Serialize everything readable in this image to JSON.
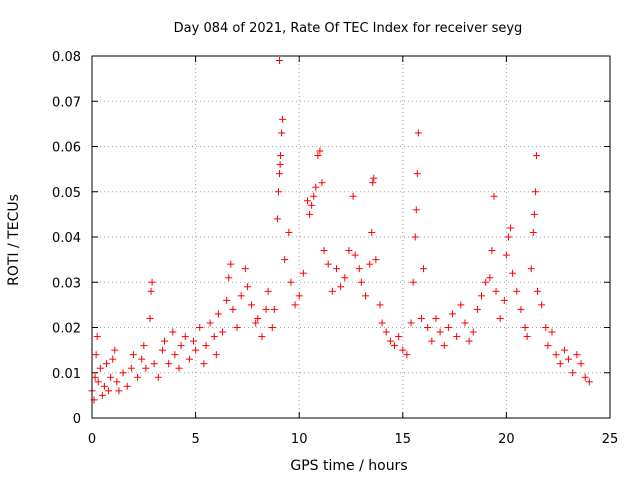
{
  "chart_data": {
    "type": "scatter",
    "title": "Day 084 of 2021, Rate Of TEC Index for receiver seyg",
    "xlabel": "GPS time / hours",
    "ylabel": "ROTI / TECUs",
    "xlim": [
      0,
      25
    ],
    "ylim": [
      0,
      0.08
    ],
    "x_ticks": [
      "0",
      "5",
      "10",
      "15",
      "20",
      "25"
    ],
    "y_ticks": [
      "0",
      "0.01",
      "0.02",
      "0.03",
      "0.04",
      "0.05",
      "0.06",
      "0.07",
      "0.08"
    ],
    "grid": true,
    "marker": "+",
    "color": "#ff0000",
    "series": [
      {
        "points": [
          [
            0.0,
            0.006
          ],
          [
            0.1,
            0.004
          ],
          [
            0.15,
            0.009
          ],
          [
            0.2,
            0.014
          ],
          [
            0.25,
            0.018
          ],
          [
            0.3,
            0.008
          ],
          [
            0.4,
            0.011
          ],
          [
            0.5,
            0.005
          ],
          [
            0.6,
            0.007
          ],
          [
            0.7,
            0.012
          ],
          [
            0.8,
            0.006
          ],
          [
            0.9,
            0.009
          ],
          [
            1.0,
            0.013
          ],
          [
            1.1,
            0.015
          ],
          [
            1.2,
            0.008
          ],
          [
            1.3,
            0.006
          ],
          [
            1.5,
            0.01
          ],
          [
            1.7,
            0.007
          ],
          [
            1.9,
            0.011
          ],
          [
            2.0,
            0.014
          ],
          [
            2.2,
            0.009
          ],
          [
            2.4,
            0.013
          ],
          [
            2.5,
            0.016
          ],
          [
            2.6,
            0.011
          ],
          [
            2.8,
            0.022
          ],
          [
            2.85,
            0.028
          ],
          [
            2.9,
            0.03
          ],
          [
            3.0,
            0.012
          ],
          [
            3.2,
            0.009
          ],
          [
            3.4,
            0.015
          ],
          [
            3.5,
            0.017
          ],
          [
            3.7,
            0.012
          ],
          [
            3.9,
            0.019
          ],
          [
            4.0,
            0.014
          ],
          [
            4.2,
            0.011
          ],
          [
            4.3,
            0.016
          ],
          [
            4.5,
            0.018
          ],
          [
            4.7,
            0.013
          ],
          [
            4.9,
            0.017
          ],
          [
            5.0,
            0.015
          ],
          [
            5.2,
            0.02
          ],
          [
            5.4,
            0.012
          ],
          [
            5.5,
            0.016
          ],
          [
            5.7,
            0.021
          ],
          [
            5.9,
            0.018
          ],
          [
            6.0,
            0.014
          ],
          [
            6.1,
            0.023
          ],
          [
            6.3,
            0.019
          ],
          [
            6.5,
            0.026
          ],
          [
            6.6,
            0.031
          ],
          [
            6.7,
            0.034
          ],
          [
            6.8,
            0.024
          ],
          [
            7.0,
            0.02
          ],
          [
            7.2,
            0.027
          ],
          [
            7.4,
            0.033
          ],
          [
            7.5,
            0.029
          ],
          [
            7.7,
            0.025
          ],
          [
            7.9,
            0.021
          ],
          [
            8.0,
            0.022
          ],
          [
            8.2,
            0.018
          ],
          [
            8.4,
            0.024
          ],
          [
            8.5,
            0.028
          ],
          [
            8.7,
            0.02
          ],
          [
            8.8,
            0.024
          ],
          [
            8.95,
            0.044
          ],
          [
            9.0,
            0.05
          ],
          [
            9.05,
            0.054
          ],
          [
            9.08,
            0.056
          ],
          [
            9.1,
            0.058
          ],
          [
            9.15,
            0.063
          ],
          [
            9.2,
            0.066
          ],
          [
            9.05,
            0.079
          ],
          [
            9.3,
            0.035
          ],
          [
            9.5,
            0.041
          ],
          [
            9.6,
            0.03
          ],
          [
            9.8,
            0.025
          ],
          [
            10.0,
            0.027
          ],
          [
            10.2,
            0.032
          ],
          [
            10.4,
            0.048
          ],
          [
            10.5,
            0.045
          ],
          [
            10.6,
            0.047
          ],
          [
            10.7,
            0.049
          ],
          [
            10.8,
            0.051
          ],
          [
            10.9,
            0.058
          ],
          [
            11.0,
            0.059
          ],
          [
            11.1,
            0.052
          ],
          [
            11.2,
            0.037
          ],
          [
            11.4,
            0.034
          ],
          [
            11.6,
            0.028
          ],
          [
            11.8,
            0.033
          ],
          [
            12.0,
            0.029
          ],
          [
            12.2,
            0.031
          ],
          [
            12.4,
            0.037
          ],
          [
            12.6,
            0.049
          ],
          [
            12.7,
            0.036
          ],
          [
            12.9,
            0.033
          ],
          [
            13.0,
            0.03
          ],
          [
            13.2,
            0.027
          ],
          [
            13.4,
            0.034
          ],
          [
            13.5,
            0.041
          ],
          [
            13.55,
            0.052
          ],
          [
            13.6,
            0.053
          ],
          [
            13.7,
            0.035
          ],
          [
            13.9,
            0.025
          ],
          [
            14.0,
            0.021
          ],
          [
            14.2,
            0.019
          ],
          [
            14.4,
            0.017
          ],
          [
            14.6,
            0.016
          ],
          [
            14.8,
            0.018
          ],
          [
            15.0,
            0.015
          ],
          [
            15.2,
            0.014
          ],
          [
            15.4,
            0.021
          ],
          [
            15.5,
            0.03
          ],
          [
            15.6,
            0.04
          ],
          [
            15.65,
            0.046
          ],
          [
            15.7,
            0.054
          ],
          [
            15.75,
            0.063
          ],
          [
            15.9,
            0.022
          ],
          [
            16.0,
            0.033
          ],
          [
            16.2,
            0.02
          ],
          [
            16.4,
            0.017
          ],
          [
            16.6,
            0.022
          ],
          [
            16.8,
            0.019
          ],
          [
            17.0,
            0.016
          ],
          [
            17.2,
            0.02
          ],
          [
            17.4,
            0.023
          ],
          [
            17.6,
            0.018
          ],
          [
            17.8,
            0.025
          ],
          [
            18.0,
            0.021
          ],
          [
            18.2,
            0.017
          ],
          [
            18.4,
            0.019
          ],
          [
            18.6,
            0.024
          ],
          [
            18.8,
            0.027
          ],
          [
            19.0,
            0.03
          ],
          [
            19.2,
            0.031
          ],
          [
            19.3,
            0.037
          ],
          [
            19.4,
            0.049
          ],
          [
            19.5,
            0.028
          ],
          [
            19.7,
            0.022
          ],
          [
            19.9,
            0.026
          ],
          [
            20.0,
            0.036
          ],
          [
            20.1,
            0.04
          ],
          [
            20.2,
            0.042
          ],
          [
            20.3,
            0.032
          ],
          [
            20.5,
            0.028
          ],
          [
            20.7,
            0.024
          ],
          [
            20.9,
            0.02
          ],
          [
            21.0,
            0.018
          ],
          [
            21.2,
            0.033
          ],
          [
            21.3,
            0.041
          ],
          [
            21.35,
            0.045
          ],
          [
            21.4,
            0.05
          ],
          [
            21.45,
            0.058
          ],
          [
            21.5,
            0.028
          ],
          [
            21.7,
            0.025
          ],
          [
            21.9,
            0.02
          ],
          [
            22.0,
            0.016
          ],
          [
            22.2,
            0.019
          ],
          [
            22.4,
            0.014
          ],
          [
            22.6,
            0.012
          ],
          [
            22.8,
            0.015
          ],
          [
            23.0,
            0.013
          ],
          [
            23.2,
            0.01
          ],
          [
            23.4,
            0.014
          ],
          [
            23.6,
            0.012
          ],
          [
            23.8,
            0.009
          ],
          [
            24.0,
            0.008
          ]
        ]
      }
    ]
  }
}
